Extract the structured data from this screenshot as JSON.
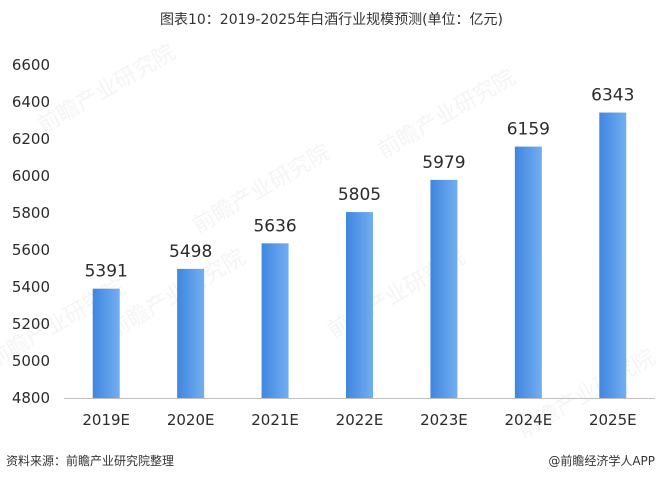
{
  "source_note": "资料来源：前瞻产业研究院整理",
  "publisher": "@前瞻经济学人APP",
  "watermark": "前瞻产业研究院",
  "colors": {
    "bar_start": "#3f86e0",
    "bar_end": "#73aef0",
    "axis": "#bfbfbf",
    "text": "#333333"
  },
  "chart_data": {
    "type": "bar",
    "title": "图表10：2019-2025年白酒行业规模预测(单位：亿元)",
    "categories": [
      "2019E",
      "2020E",
      "2021E",
      "2022E",
      "2023E",
      "2024E",
      "2025E"
    ],
    "values": [
      5391,
      5498,
      5636,
      5805,
      5979,
      6159,
      6343
    ],
    "yticks": [
      4800,
      5000,
      5200,
      5400,
      5600,
      5800,
      6000,
      6200,
      6400,
      6600
    ],
    "ylim": [
      4800,
      6600
    ],
    "xlabel": "",
    "ylabel": "",
    "grid": false,
    "legend": "none"
  }
}
